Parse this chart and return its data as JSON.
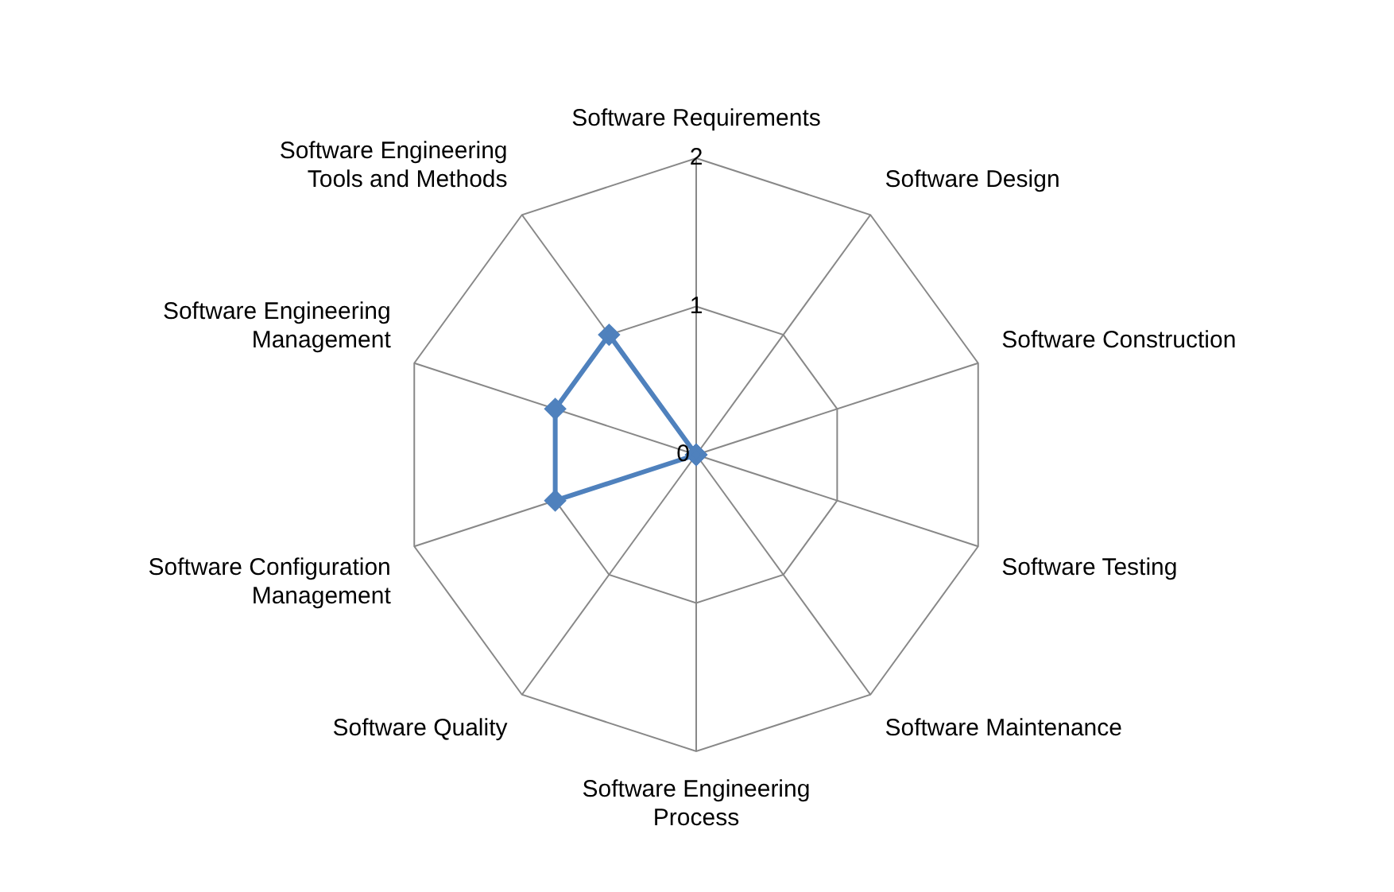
{
  "chart_data": {
    "type": "radar",
    "categories": [
      "Software Requirements",
      "Software Design",
      "Software Construction",
      "Software Testing",
      "Software Maintenance",
      "Software Engineering Process",
      "Software Quality",
      "Software Configuration Management",
      "Software Engineering Management",
      "Software Engineering Tools and Methods"
    ],
    "series": [
      {
        "color": "#4f81bd",
        "values": [
          0,
          0,
          0,
          0,
          0,
          0,
          0,
          1,
          1,
          1
        ]
      }
    ],
    "ylim": [
      0,
      2
    ],
    "yticks": [
      0,
      1,
      2
    ],
    "grid": true,
    "legend": false,
    "marker": "diamond",
    "line_style": "solid"
  }
}
